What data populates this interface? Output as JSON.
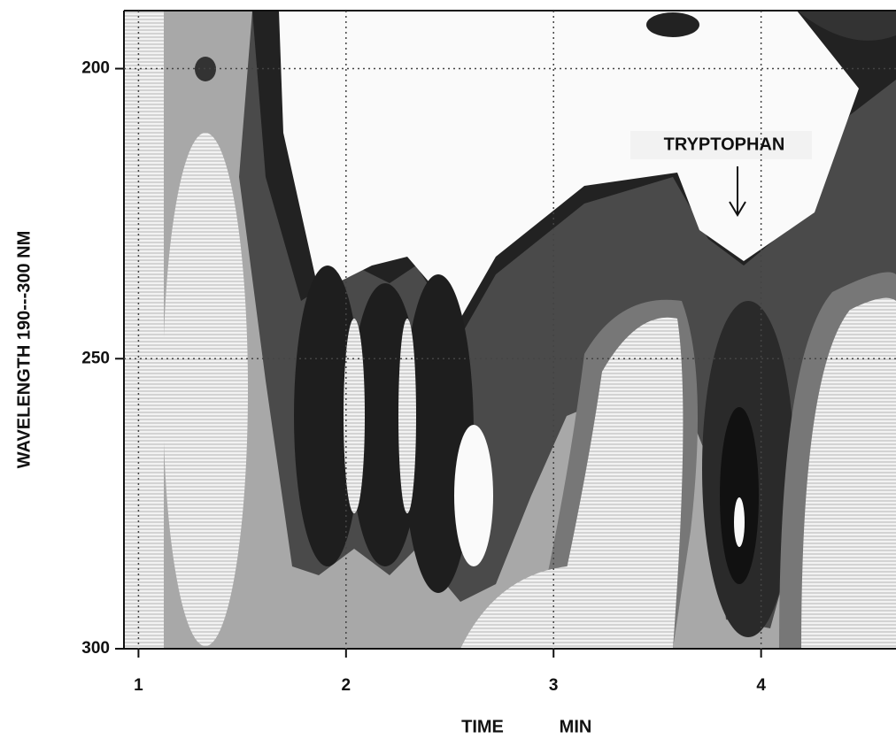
{
  "chart_data": {
    "type": "contour",
    "ylabel": "WAVELENGTH 190---300 NM",
    "xlabel": [
      "TIME",
      "MIN"
    ],
    "annotation": "TRYPTOPHAN",
    "xlim": [
      0.93,
      4.65
    ],
    "xticks": [
      1,
      2,
      3,
      4
    ],
    "ylim": [
      190,
      300
    ],
    "yticks": [
      200,
      250,
      300
    ],
    "y_reversed": true,
    "grid": "dotted"
  }
}
